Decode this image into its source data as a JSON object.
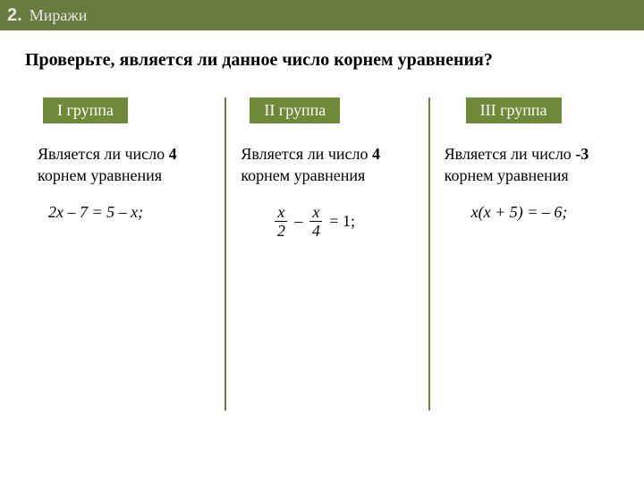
{
  "colors": {
    "header_bg": "#677c3e",
    "badge_bg": "#6e8a39",
    "divider": "#6a7f3f",
    "text": "#000000",
    "header_text": "#e6e6e6"
  },
  "header": {
    "number": "2.",
    "title": "Миражи"
  },
  "instruction": "Проверьте, является ли данное число корнем уравнения?",
  "groups": [
    {
      "badge": "I группа",
      "question_prefix": "Является ли число ",
      "number": "4",
      "question_suffix": " корнем уравнения",
      "equation_text": "2х – 7 =  5 – х;"
    },
    {
      "badge": "II группа",
      "question_prefix": "Является ли число ",
      "number": "4",
      "question_suffix": " корнем уравнения",
      "fraction": {
        "num1": "x",
        "den1": "2",
        "op": "–",
        "num2": "x",
        "den2": "4",
        "rhs": "= 1;"
      }
    },
    {
      "badge": "III группа",
      "question_prefix": "Является ли число ",
      "number": "-3",
      "question_suffix": " корнем уравнения",
      "equation_text": "х(х + 5) = – 6;"
    }
  ]
}
